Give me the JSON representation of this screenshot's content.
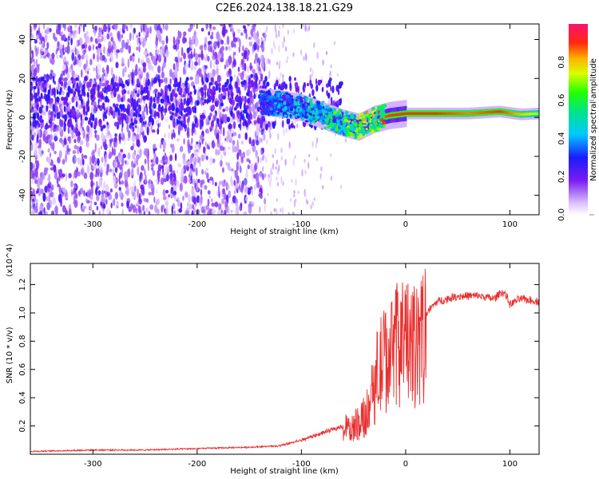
{
  "title": "C2E6.2024.138.18.21.G29",
  "chart_data": [
    {
      "type": "heatmap",
      "title": "C2E6.2024.138.18.21.G29",
      "xlabel": "Height of straight line (km)",
      "ylabel": "Frequency (Hz)",
      "xlim": [
        -360,
        128
      ],
      "ylim": [
        -50,
        48
      ],
      "xticks": [
        -300,
        -200,
        -100,
        0,
        100
      ],
      "yticks": [
        -40,
        -20,
        0,
        20,
        40
      ],
      "colorbar": {
        "label": "Normalized spectral amplitude",
        "range": [
          0,
          1
        ],
        "ticks": [
          0.0,
          0.2,
          0.4,
          0.6,
          0.8
        ]
      },
      "signal_track": [
        {
          "x": -140,
          "freq": 8,
          "amplitude": 0.35
        },
        {
          "x": -120,
          "freq": 7,
          "amplitude": 0.45
        },
        {
          "x": -100,
          "freq": 5,
          "amplitude": 0.48
        },
        {
          "x": -80,
          "freq": 1,
          "amplitude": 0.55
        },
        {
          "x": -60,
          "freq": -3,
          "amplitude": 0.65
        },
        {
          "x": -45,
          "freq": -5,
          "amplitude": 0.7
        },
        {
          "x": -30,
          "freq": -1,
          "amplitude": 0.85
        },
        {
          "x": -15,
          "freq": 1,
          "amplitude": 0.9
        },
        {
          "x": 0,
          "freq": 2,
          "amplitude": 0.9
        },
        {
          "x": 30,
          "freq": 2,
          "amplitude": 0.9
        },
        {
          "x": 60,
          "freq": 2,
          "amplitude": 0.85
        },
        {
          "x": 90,
          "freq": 3,
          "amplitude": 0.9
        },
        {
          "x": 110,
          "freq": 1.5,
          "amplitude": 0.8
        },
        {
          "x": 128,
          "freq": 2,
          "amplitude": 0.7
        }
      ]
    },
    {
      "type": "line",
      "xlabel": "Height of straight line (km)",
      "ylabel": "SNR (10 * v/v)",
      "y_multiplier": "(x10^4)",
      "xlim": [
        -360,
        128
      ],
      "ylim": [
        0,
        1.35
      ],
      "xticks": [
        -300,
        -200,
        -100,
        0,
        100
      ],
      "yticks": [
        0.2,
        0.4,
        0.6,
        0.8,
        1.0,
        1.2
      ],
      "series": [
        {
          "name": "SNR",
          "color": "#e8302f",
          "x": [
            -360,
            -300,
            -250,
            -200,
            -150,
            -120,
            -100,
            -80,
            -60,
            -45,
            -35,
            -28,
            -20,
            -12,
            -5,
            0,
            5,
            10,
            20,
            30,
            50,
            70,
            85,
            92,
            96,
            100,
            110,
            128
          ],
          "y": [
            0.02,
            0.03,
            0.03,
            0.04,
            0.05,
            0.06,
            0.1,
            0.15,
            0.2,
            0.25,
            0.4,
            0.65,
            0.8,
            0.85,
            0.95,
            0.98,
            0.85,
            0.9,
            1.0,
            1.08,
            1.12,
            1.12,
            1.1,
            1.15,
            1.13,
            1.06,
            1.1,
            1.08
          ]
        }
      ]
    }
  ]
}
